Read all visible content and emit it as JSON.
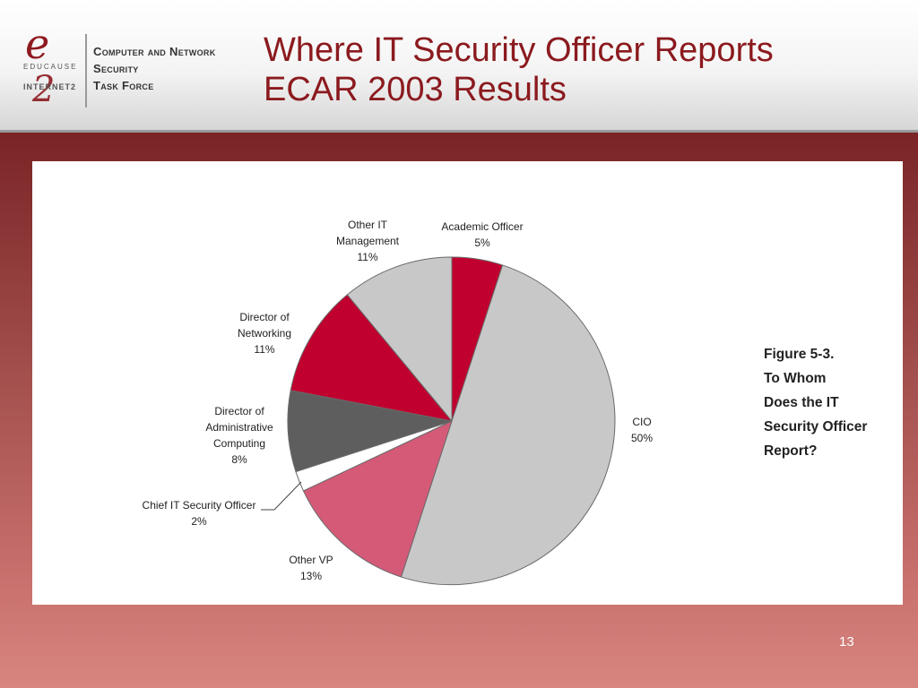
{
  "header": {
    "logo": {
      "educause": "EDUCAUSE",
      "internet2": "INTERNET2",
      "task_force_lines": [
        "Computer and Network",
        "Security",
        "Task Force"
      ]
    },
    "title_lines": [
      "Where IT Security Officer Reports",
      "ECAR 2003 Results"
    ]
  },
  "figure_caption_lines": [
    "Figure 5-3.",
    "To Whom",
    "Does the IT",
    "Security Officer",
    "Report?"
  ],
  "page_number": "13",
  "colors": {
    "crimson": "#c0002e",
    "gray_light": "#c8c8c8",
    "gray_dark": "#5e5e5e",
    "pink": "#d45a78",
    "white": "#ffffff",
    "title_red": "#8b1a1e"
  },
  "chart_data": {
    "type": "pie",
    "title": "",
    "slices": [
      {
        "label_lines": [
          "Academic Officer",
          "5%"
        ],
        "value": 5,
        "color": "#c0002e"
      },
      {
        "label_lines": [
          "CIO",
          "50%"
        ],
        "value": 50,
        "color": "#c8c8c8"
      },
      {
        "label_lines": [
          "Other VP",
          "13%"
        ],
        "value": 13,
        "color": "#d45a78"
      },
      {
        "label_lines": [
          "Chief IT Security Officer",
          "2%"
        ],
        "value": 2,
        "color": "#ffffff"
      },
      {
        "label_lines": [
          "Director of",
          "Administrative",
          "Computing",
          "8%"
        ],
        "value": 8,
        "color": "#5e5e5e"
      },
      {
        "label_lines": [
          "Director of",
          "Networking",
          "11%"
        ],
        "value": 11,
        "color": "#c0002e"
      },
      {
        "label_lines": [
          "Other IT",
          "Management",
          "11%"
        ],
        "value": 11,
        "color": "#c8c8c8"
      }
    ]
  }
}
